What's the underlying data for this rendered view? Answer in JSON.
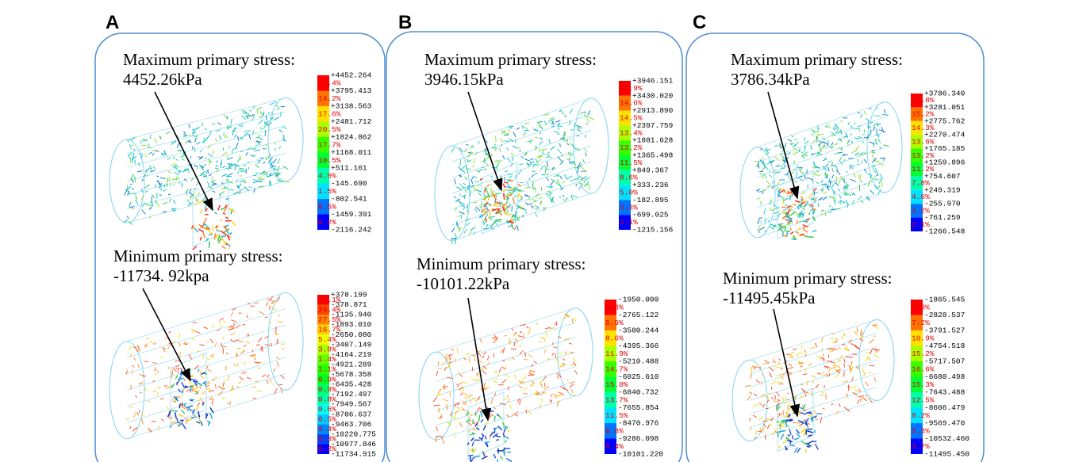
{
  "panels": [
    {
      "label": "A",
      "max": {
        "title": "Maximum primary stress:",
        "value": "4452.26kPa",
        "legend": {
          "values": [
            "+4452.264",
            "+3795.413",
            "+3138.563",
            "+2481.712",
            "+1824.862",
            "+1168.011",
            "+511.161",
            "-145.690",
            "-802.541",
            "-1459.391",
            "-2116.242"
          ],
          "percents": [
            "12.4%",
            "14.2%",
            "17.6%",
            "20.5%",
            "17.7%",
            "10.5%",
            "4.9%",
            "1.5%",
            "0.5%",
            "0.2%"
          ]
        }
      },
      "min": {
        "title": "Minimum primary stress:",
        "value": "-11734. 92kpa",
        "legend": {
          "values": [
            "+378.199",
            "-378.871",
            "-1135.940",
            "-1893.010",
            "-2650.080",
            "-3407.149",
            "-4164.219",
            "-4921.289",
            "-5678.358",
            "-6435.428",
            "-7192.497",
            "-7949.567",
            "-8706.637",
            "-9463.706",
            "-10220.775",
            "-10977.846",
            "-11734.915"
          ],
          "percents": [
            "11.1%",
            "24.4%",
            "27.5%",
            "16.7%",
            "5.4%",
            "3.8%",
            "1.4%",
            "1.1%",
            "0.9%",
            "0.9%",
            "0.8%",
            "0.6%",
            "0.5%",
            "0.4%",
            "0.3%",
            "0.2%"
          ]
        }
      }
    },
    {
      "label": "B",
      "max": {
        "title": "Maximum primary stress:",
        "value": "3946.15kPa",
        "legend": {
          "values": [
            "+3946.151",
            "+3430.020",
            "+2913.890",
            "+2397.759",
            "+1881.628",
            "+1365.498",
            "+849.367",
            "+333.236",
            "-182.895",
            "-699.025",
            "-1215.156"
          ],
          "percents": [
            "13.9%",
            "14.6%",
            "14.5%",
            "13.4%",
            "13.2%",
            "11.5%",
            "8.6%",
            "5.0%",
            "3.3%",
            "2.1%"
          ]
        }
      },
      "min": {
        "title": "Minimum primary stress:",
        "value": "-10101.22kPa",
        "legend": {
          "values": [
            "-1950.000",
            "-2765.122",
            "-3580.244",
            "-4395.366",
            "-5210.488",
            "-6025.610",
            "-6840.732",
            "-7655.854",
            "-8470.976",
            "-9286.098",
            "-10101.220"
          ],
          "percents": [
            "3.3%",
            "5.9%",
            "8.6%",
            "11.9%",
            "14.7%",
            "15.0%",
            "13.7%",
            "11.5%",
            "8.8%",
            "6.4%"
          ]
        }
      }
    },
    {
      "label": "C",
      "max": {
        "title": "Maximum primary stress:",
        "value": "3786.34kPa",
        "legend": {
          "values": [
            "+3786.340",
            "+3281.051",
            "+2775.762",
            "+2270.474",
            "+1765.185",
            "+1259.896",
            "+754.607",
            "+249.319",
            "-255.970",
            "-761.259",
            "-1266.548"
          ],
          "percents": [
            "14.8%",
            "15.2%",
            "14.3%",
            "13.6%",
            "13.2%",
            "11.2%",
            "7.8%",
            "4.6%",
            "3.2%",
            "2.1%"
          ]
        }
      },
      "min": {
        "title": "Minimum primary stress:",
        "value": "-11495.45kPa",
        "legend": {
          "values": [
            "-1865.545",
            "-2828.537",
            "-3791.527",
            "-4754.518",
            "-5717.507",
            "-6680.498",
            "-7643.488",
            "-8606.479",
            "-9569.470",
            "-10532.460",
            "-11495.450"
          ],
          "percents": [
            "3.9%",
            "7.2%",
            "10.9%",
            "15.2%",
            "16.6%",
            "15.3%",
            "12.5%",
            "9.2%",
            "5.3%",
            "3.7%"
          ]
        }
      }
    }
  ]
}
